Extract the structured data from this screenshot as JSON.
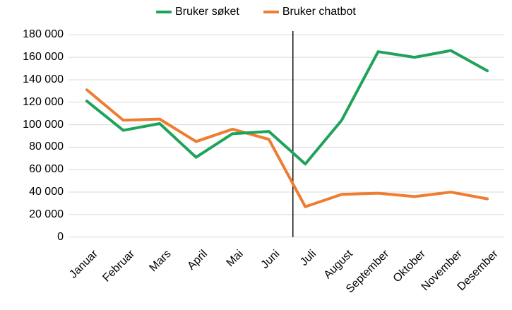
{
  "chart_data": {
    "type": "line",
    "title": "",
    "categories": [
      "Januar",
      "Februar",
      "Mars",
      "April",
      "Mai",
      "Juni",
      "Juli",
      "August",
      "September",
      "Oktober",
      "November",
      "Desember"
    ],
    "series": [
      {
        "name": "Bruker søket",
        "color": "#1FA35A",
        "values": [
          121000,
          95000,
          101000,
          71000,
          92000,
          94000,
          65000,
          104000,
          165000,
          160000,
          166000,
          148000
        ]
      },
      {
        "name": "Bruker chatbot",
        "color": "#ED7D31",
        "values": [
          131000,
          104000,
          105000,
          85000,
          96000,
          87000,
          27000,
          38000,
          39000,
          36000,
          40000,
          34000
        ]
      }
    ],
    "ylim": [
      0,
      180000
    ],
    "y_tick_step": 20000,
    "y_tick_labels": [
      "0",
      "20 000",
      "40 000",
      "60 000",
      "80 000",
      "100 000",
      "120 000",
      "140 000",
      "160 000",
      "180 000"
    ],
    "grid": "horizontal-only",
    "legend_position": "top-center",
    "annotations": [
      {
        "type": "vertical-line",
        "between": [
          "Juni",
          "Juli"
        ],
        "color": "#000000"
      }
    ]
  },
  "colors": {
    "gridline": "#D9D9D9",
    "axis_text": "#000000",
    "background": "#FFFFFF"
  }
}
